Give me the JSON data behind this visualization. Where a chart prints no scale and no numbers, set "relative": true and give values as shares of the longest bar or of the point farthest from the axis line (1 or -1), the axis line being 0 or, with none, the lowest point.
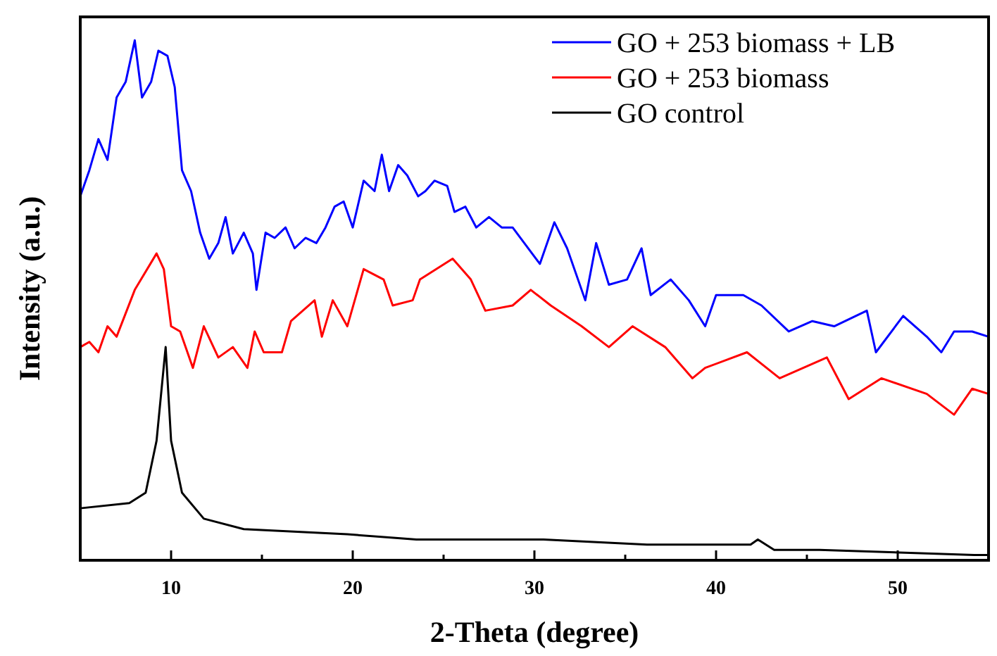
{
  "chart_data": {
    "type": "line",
    "relative": true,
    "xlabel": "2-Theta (degree)",
    "ylabel": "Intensity (a.u.)",
    "xlim": [
      5,
      55
    ],
    "xticks": [
      {
        "value": 5,
        "label": null
      },
      10,
      {
        "value": 15,
        "label": null
      },
      20,
      {
        "value": 25,
        "label": null
      },
      30,
      {
        "value": 35,
        "label": null
      },
      40,
      {
        "value": 45,
        "label": null
      },
      50,
      {
        "value": 55,
        "label": null
      }
    ],
    "legend": "top right",
    "grid": false,
    "marker": "none",
    "line_style": "solid",
    "tick_labels": "x",
    "series": [
      {
        "name": "GO + 253 biomass + LB",
        "color": "#0000ff",
        "x": [
          5,
          5.5,
          6,
          6.5,
          7,
          7.5,
          8,
          8.4,
          8.9,
          9.3,
          9.8,
          10.2,
          10.6,
          11.1,
          11.6,
          12.1,
          12.6,
          13,
          13.4,
          14,
          14.5,
          14.7,
          15.2,
          15.7,
          16.3,
          16.8,
          17.4,
          18,
          18.5,
          19,
          19.5,
          20,
          20.6,
          21.2,
          21.6,
          22,
          22.5,
          23,
          23.6,
          24,
          24.5,
          25.2,
          25.6,
          26.2,
          26.8,
          27.5,
          28.2,
          28.8,
          30.3,
          31.1,
          31.8,
          32.8,
          33.4,
          34.1,
          35.1,
          35.9,
          36.4,
          37.5,
          38.5,
          39.4,
          40,
          41.5,
          42.5,
          44,
          45.3,
          46.5,
          48.3,
          48.8,
          50.3,
          51.6,
          52.4,
          53.1,
          54.1,
          55
        ],
        "values": [
          0.7,
          0.75,
          0.81,
          0.77,
          0.89,
          0.92,
          1,
          0.89,
          0.92,
          0.98,
          0.97,
          0.91,
          0.75,
          0.71,
          0.63,
          0.58,
          0.61,
          0.66,
          0.59,
          0.63,
          0.59,
          0.52,
          0.63,
          0.62,
          0.64,
          0.6,
          0.62,
          0.61,
          0.64,
          0.68,
          0.69,
          0.64,
          0.73,
          0.71,
          0.78,
          0.71,
          0.76,
          0.74,
          0.7,
          0.71,
          0.73,
          0.72,
          0.67,
          0.68,
          0.64,
          0.66,
          0.64,
          0.64,
          0.57,
          0.65,
          0.6,
          0.5,
          0.61,
          0.53,
          0.54,
          0.6,
          0.51,
          0.54,
          0.5,
          0.45,
          0.51,
          0.51,
          0.49,
          0.44,
          0.46,
          0.45,
          0.48,
          0.4,
          0.47,
          0.43,
          0.4,
          0.44,
          0.44,
          0.43
        ]
      },
      {
        "name": "GO + 253 biomass",
        "color": "#ff0000",
        "x": [
          5,
          5.5,
          6,
          6.5,
          7,
          8,
          9.2,
          9.6,
          10,
          10.5,
          11.2,
          11.8,
          12.6,
          13.4,
          14.2,
          14.6,
          15.1,
          16.1,
          16.6,
          17.9,
          18.3,
          18.9,
          19.7,
          20.6,
          21.7,
          22.2,
          23.3,
          23.7,
          25.5,
          26.5,
          27.3,
          28.8,
          29.8,
          30.9,
          32.6,
          34.1,
          35.4,
          37.2,
          38.7,
          39.4,
          41.7,
          43.5,
          46.1,
          47.3,
          49.1,
          51.6,
          53.1,
          54.1,
          55
        ],
        "values": [
          0.41,
          0.42,
          0.4,
          0.45,
          0.43,
          0.52,
          0.59,
          0.56,
          0.45,
          0.44,
          0.37,
          0.45,
          0.39,
          0.41,
          0.37,
          0.44,
          0.4,
          0.4,
          0.46,
          0.5,
          0.43,
          0.5,
          0.45,
          0.56,
          0.54,
          0.49,
          0.5,
          0.54,
          0.58,
          0.54,
          0.48,
          0.49,
          0.52,
          0.49,
          0.45,
          0.41,
          0.45,
          0.41,
          0.35,
          0.37,
          0.4,
          0.35,
          0.39,
          0.31,
          0.35,
          0.32,
          0.28,
          0.33,
          0.32
        ]
      },
      {
        "name": "GO control",
        "color": "#000000",
        "x": [
          5,
          7.7,
          8.6,
          9.2,
          9.7,
          10,
          10.6,
          11.8,
          14,
          19.7,
          23.5,
          30.5,
          36.2,
          41.9,
          42.3,
          43.2,
          45.7,
          54.2,
          55
        ],
        "values": [
          0.1,
          0.11,
          0.13,
          0.23,
          0.41,
          0.23,
          0.13,
          0.08,
          0.06,
          0.05,
          0.04,
          0.04,
          0.03,
          0.03,
          0.04,
          0.02,
          0.02,
          0.01,
          0.01
        ]
      }
    ]
  }
}
